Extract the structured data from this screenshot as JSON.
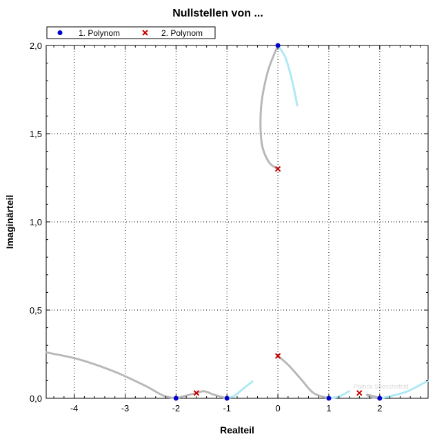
{
  "chart_data": {
    "type": "scatter",
    "title": "Nullstellen von ...",
    "xlabel": "Realteil",
    "ylabel": "Imaginärteil",
    "xlim": [
      -4.55,
      2.95
    ],
    "ylim": [
      0,
      2.0
    ],
    "x_ticks": [
      {
        "value": -4,
        "label": "-4"
      },
      {
        "value": -3,
        "label": "-3"
      },
      {
        "value": -2,
        "label": "-2"
      },
      {
        "value": -1,
        "label": "-1"
      },
      {
        "value": 0,
        "label": "0"
      },
      {
        "value": 1,
        "label": "1"
      },
      {
        "value": 2,
        "label": "2"
      }
    ],
    "y_ticks": [
      {
        "value": 0.0,
        "label": "0,0"
      },
      {
        "value": 0.5,
        "label": "0,5"
      },
      {
        "value": 1.0,
        "label": "1,0"
      },
      {
        "value": 1.5,
        "label": "1,5"
      },
      {
        "value": 2.0,
        "label": "2,0"
      }
    ],
    "grid": true,
    "legend_position": "top-left",
    "series": [
      {
        "name": "1. Polynom",
        "marker": "circle",
        "color": "#0000cc",
        "points": [
          {
            "x": 0.0,
            "y": 2.0
          },
          {
            "x": -2.0,
            "y": 0.0
          },
          {
            "x": -1.0,
            "y": 0.0
          },
          {
            "x": 1.0,
            "y": 0.0
          },
          {
            "x": 2.0,
            "y": 0.0
          }
        ]
      },
      {
        "name": "2. Polynom",
        "marker": "x",
        "color": "#cc0000",
        "points": [
          {
            "x": 0.0,
            "y": 1.3
          },
          {
            "x": 0.0,
            "y": 0.24
          },
          {
            "x": -1.6,
            "y": 0.03
          },
          {
            "x": 1.6,
            "y": 0.03
          }
        ]
      }
    ],
    "curves": [
      {
        "color": "#b8b8b8",
        "points": [
          [
            0.0,
            2.0
          ],
          [
            -0.2,
            1.85
          ],
          [
            -0.33,
            1.65
          ],
          [
            -0.32,
            1.45
          ],
          [
            -0.18,
            1.34
          ],
          [
            0.0,
            1.3
          ]
        ]
      },
      {
        "color": "#aee9f5",
        "points": [
          [
            0.0,
            2.0
          ],
          [
            0.15,
            1.93
          ],
          [
            0.28,
            1.8
          ],
          [
            0.38,
            1.66
          ]
        ]
      },
      {
        "color": "#b8b8b8",
        "points": [
          [
            -4.55,
            0.26
          ],
          [
            -3.9,
            0.22
          ],
          [
            -3.2,
            0.15
          ],
          [
            -2.6,
            0.07
          ],
          [
            -2.25,
            0.015
          ],
          [
            -2.0,
            0.0
          ]
        ]
      },
      {
        "color": "#b8b8b8",
        "points": [
          [
            -2.0,
            0.0
          ],
          [
            -1.6,
            0.03
          ],
          [
            -1.45,
            0.04
          ],
          [
            -1.25,
            0.02
          ],
          [
            -1.0,
            0.0
          ]
        ]
      },
      {
        "color": "#aee9f5",
        "points": [
          [
            -1.0,
            0.0
          ],
          [
            -0.85,
            0.015
          ],
          [
            -0.7,
            0.05
          ],
          [
            -0.5,
            0.095
          ]
        ]
      },
      {
        "color": "#b8b8b8",
        "points": [
          [
            0.0,
            0.24
          ],
          [
            0.2,
            0.19
          ],
          [
            0.45,
            0.11
          ],
          [
            0.7,
            0.03
          ],
          [
            1.0,
            0.0
          ]
        ]
      },
      {
        "color": "#aee9f5",
        "points": [
          [
            1.0,
            0.0
          ],
          [
            1.2,
            0.01
          ],
          [
            1.4,
            0.04
          ]
        ]
      },
      {
        "color": "#b8b8b8",
        "points": [
          [
            2.0,
            0.0
          ],
          [
            1.85,
            0.005
          ],
          [
            1.75,
            0.02
          ],
          [
            1.9,
            0.01
          ],
          [
            2.0,
            0.0
          ]
        ]
      },
      {
        "color": "#aee9f5",
        "points": [
          [
            2.0,
            0.0
          ],
          [
            2.25,
            0.015
          ],
          [
            2.55,
            0.04
          ],
          [
            2.95,
            0.1
          ]
        ]
      }
    ]
  },
  "watermark": "Patrick Seeschnfeld"
}
